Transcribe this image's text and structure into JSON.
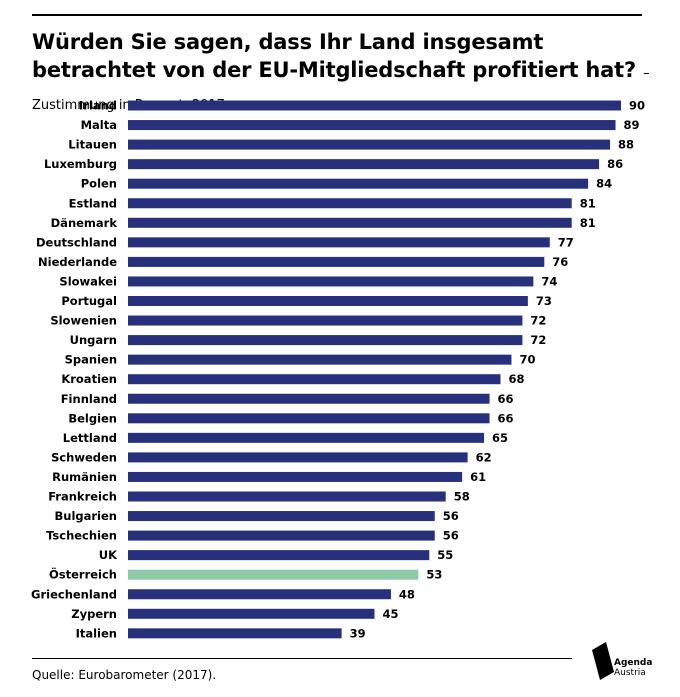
{
  "header": {
    "title": "Würden Sie sagen, dass Ihr Land insgesamt betrachtet von der EU-Mitgliedschaft profitiert hat?",
    "subtitle": "– Zustimmung in Prozent, 2017"
  },
  "footer": {
    "source": "Quelle: Eurobarometer (2017).",
    "logo_line1": "Agenda",
    "logo_line2": "Austria"
  },
  "colors": {
    "bar": "#27307a",
    "highlight": "#8dcba5",
    "text": "#000000"
  },
  "chart_data": {
    "type": "bar",
    "orientation": "horizontal",
    "title": "Würden Sie sagen, dass Ihr Land insgesamt betrachtet von der EU-Mitgliedschaft profitiert hat?",
    "subtitle": "– Zustimmung in Prozent, 2017",
    "categories": [
      "Irland",
      "Malta",
      "Litauen",
      "Luxemburg",
      "Polen",
      "Estland",
      "Dänemark",
      "Deutschland",
      "Niederlande",
      "Slowakei",
      "Portugal",
      "Slowenien",
      "Ungarn",
      "Spanien",
      "Kroatien",
      "Finnland",
      "Belgien",
      "Lettland",
      "Schweden",
      "Rumänien",
      "Frankreich",
      "Bulgarien",
      "Tschechien",
      "UK",
      "Österreich",
      "Griechenland",
      "Zypern",
      "Italien"
    ],
    "values": [
      90,
      89,
      88,
      86,
      84,
      81,
      81,
      77,
      76,
      74,
      73,
      72,
      72,
      70,
      68,
      66,
      66,
      65,
      62,
      61,
      58,
      56,
      56,
      55,
      53,
      48,
      45,
      39
    ],
    "highlight": "Österreich",
    "xlim": [
      0,
      90
    ],
    "grid": false,
    "data_labels": true
  }
}
